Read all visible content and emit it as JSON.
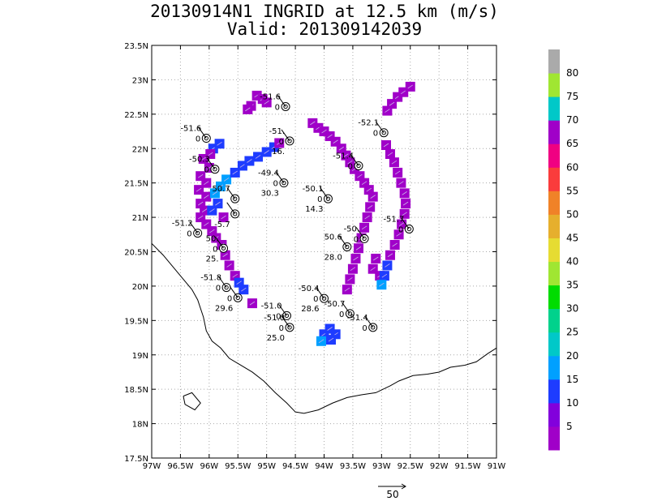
{
  "chart_data": {
    "type": "heatmap",
    "title": "20130914N1 INGRID at 12.5 km (m/s)",
    "subtitle": "Valid: 201309142039",
    "xlim": [
      -97,
      -91
    ],
    "ylim": [
      17.5,
      23.5
    ],
    "x_ticks": [
      "97W",
      "96.5W",
      "96W",
      "95.5W",
      "95W",
      "94.5W",
      "94W",
      "93.5W",
      "93W",
      "92.5W",
      "92W",
      "91.5W",
      "91W"
    ],
    "y_ticks": [
      "17.5N",
      "18N",
      "18.5N",
      "19N",
      "19.5N",
      "20N",
      "20.5N",
      "21N",
      "21.5N",
      "22N",
      "22.5N",
      "23N",
      "23.5N"
    ],
    "grid": true,
    "colorbar": {
      "labels": [
        "5",
        "10",
        "15",
        "20",
        "25",
        "30",
        "35",
        "40",
        "45",
        "50",
        "55",
        "60",
        "65",
        "70",
        "75",
        "80"
      ],
      "colors": [
        "#a000c8",
        "#8200dc",
        "#1e3cff",
        "#00a0ff",
        "#00c8c8",
        "#00d28c",
        "#00dc00",
        "#a0e632",
        "#e6dc32",
        "#e6af2d",
        "#f08228",
        "#fa3c3c",
        "#f00082",
        "#a000c8",
        "#00c8c8",
        "#a0e632",
        "#aaaaaa"
      ]
    },
    "reference_vector": "50",
    "drops": [
      {
        "lon": -94.67,
        "lat": 22.61,
        "label_top": "-51.6",
        "label_left": "0"
      },
      {
        "lon": -96.05,
        "lat": 22.15,
        "label_top": "-51.6",
        "label_left": "0"
      },
      {
        "lon": -94.6,
        "lat": 22.11,
        "label_top": "-51.",
        "label_left": "0",
        "label_bottom": "16."
      },
      {
        "lon": -92.96,
        "lat": 22.23,
        "label_top": "-52.1",
        "label_left": "0"
      },
      {
        "lon": -93.4,
        "lat": 21.75,
        "label_top": "-51.4",
        "label_left": "0"
      },
      {
        "lon": -95.9,
        "lat": 21.7,
        "label_top": "-50.3",
        "label_left": "0"
      },
      {
        "lon": -94.7,
        "lat": 21.5,
        "label_top": "-49.4",
        "label_left": "0",
        "label_bottom": "30.3"
      },
      {
        "lon": -93.93,
        "lat": 21.27,
        "label_top": "-50.1",
        "label_left": "0",
        "label_bottom": "14.3"
      },
      {
        "lon": -95.55,
        "lat": 21.27,
        "label_top": "50.7",
        "label_left": "",
        "label_bottom": ""
      },
      {
        "lon": -95.55,
        "lat": 21.05,
        "label_top": "",
        "label_left": "",
        "label_bottom": "-5.7"
      },
      {
        "lon": -96.2,
        "lat": 20.77,
        "label_top": "-51.2",
        "label_left": "0"
      },
      {
        "lon": -92.52,
        "lat": 20.83,
        "label_top": "-51.7",
        "label_left": "0"
      },
      {
        "lon": -93.3,
        "lat": 20.69,
        "label_top": "-50.",
        "label_left": "0"
      },
      {
        "lon": -93.6,
        "lat": 20.57,
        "label_top": "50.6",
        "label_left": "",
        "label_bottom": "28.0"
      },
      {
        "lon": -95.75,
        "lat": 20.55,
        "label_top": "50.",
        "label_left": "0",
        "label_bottom": "25."
      },
      {
        "lon": -95.7,
        "lat": 19.98,
        "label_top": "-51.8",
        "label_left": "0"
      },
      {
        "lon": -95.5,
        "lat": 19.83,
        "label_top": "",
        "label_left": "0",
        "label_bottom": "29.6"
      },
      {
        "lon": -94.0,
        "lat": 19.82,
        "label_top": "-50.4",
        "label_left": "0",
        "label_bottom": "28.6"
      },
      {
        "lon": -93.55,
        "lat": 19.6,
        "label_top": "-50.7",
        "label_left": "0"
      },
      {
        "lon": -94.65,
        "lat": 19.57,
        "label_top": "-51.0",
        "label_left": "0"
      },
      {
        "lon": -94.6,
        "lat": 19.4,
        "label_top": "-51.0",
        "label_left": "0",
        "label_bottom": "25.0"
      },
      {
        "lon": -93.15,
        "lat": 19.4,
        "label_top": "-51.4",
        "label_left": "0"
      }
    ],
    "wind_cells": [
      {
        "lon": -95.17,
        "lat": 22.77,
        "v": 3
      },
      {
        "lon": -95.07,
        "lat": 22.72,
        "v": 3
      },
      {
        "lon": -95.0,
        "lat": 22.67,
        "v": 3
      },
      {
        "lon": -95.27,
        "lat": 22.62,
        "v": 3
      },
      {
        "lon": -95.33,
        "lat": 22.57,
        "v": 3
      },
      {
        "lon": -95.93,
        "lat": 22.0,
        "v": 12
      },
      {
        "lon": -95.82,
        "lat": 22.07,
        "v": 12
      },
      {
        "lon": -95.98,
        "lat": 21.92,
        "v": 4
      },
      {
        "lon": -96.1,
        "lat": 21.85,
        "v": 4
      },
      {
        "lon": -96.0,
        "lat": 21.72,
        "v": 4
      },
      {
        "lon": -96.15,
        "lat": 21.6,
        "v": 4
      },
      {
        "lon": -96.05,
        "lat": 21.5,
        "v": 4
      },
      {
        "lon": -96.18,
        "lat": 21.4,
        "v": 4
      },
      {
        "lon": -96.05,
        "lat": 21.3,
        "v": 4
      },
      {
        "lon": -96.15,
        "lat": 21.2,
        "v": 4
      },
      {
        "lon": -96.08,
        "lat": 21.1,
        "v": 4
      },
      {
        "lon": -96.15,
        "lat": 21.0,
        "v": 4
      },
      {
        "lon": -96.05,
        "lat": 20.9,
        "v": 4
      },
      {
        "lon": -95.95,
        "lat": 20.8,
        "v": 4
      },
      {
        "lon": -95.88,
        "lat": 20.7,
        "v": 4
      },
      {
        "lon": -95.78,
        "lat": 20.6,
        "v": 4
      },
      {
        "lon": -95.72,
        "lat": 20.45,
        "v": 4
      },
      {
        "lon": -95.65,
        "lat": 20.3,
        "v": 4
      },
      {
        "lon": -95.55,
        "lat": 20.15,
        "v": 4
      },
      {
        "lon": -95.48,
        "lat": 20.05,
        "v": 12
      },
      {
        "lon": -95.4,
        "lat": 19.95,
        "v": 12
      },
      {
        "lon": -95.9,
        "lat": 21.35,
        "v": 15
      },
      {
        "lon": -95.8,
        "lat": 21.45,
        "v": 15
      },
      {
        "lon": -95.7,
        "lat": 21.55,
        "v": 15
      },
      {
        "lon": -95.85,
        "lat": 21.2,
        "v": 12
      },
      {
        "lon": -95.95,
        "lat": 21.1,
        "v": 12
      },
      {
        "lon": -95.75,
        "lat": 21.0,
        "v": 4
      },
      {
        "lon": -95.55,
        "lat": 21.65,
        "v": 12
      },
      {
        "lon": -95.42,
        "lat": 21.75,
        "v": 12
      },
      {
        "lon": -95.3,
        "lat": 21.82,
        "v": 12
      },
      {
        "lon": -95.15,
        "lat": 21.88,
        "v": 12
      },
      {
        "lon": -95.0,
        "lat": 21.95,
        "v": 12
      },
      {
        "lon": -94.87,
        "lat": 22.02,
        "v": 12
      },
      {
        "lon": -94.78,
        "lat": 22.08,
        "v": 4
      },
      {
        "lon": -95.25,
        "lat": 19.75,
        "v": 4
      },
      {
        "lon": -94.0,
        "lat": 19.3,
        "v": 12
      },
      {
        "lon": -93.9,
        "lat": 19.38,
        "v": 12
      },
      {
        "lon": -93.8,
        "lat": 19.3,
        "v": 12
      },
      {
        "lon": -94.05,
        "lat": 19.2,
        "v": 15
      },
      {
        "lon": -93.88,
        "lat": 19.22,
        "v": 12
      },
      {
        "lon": -94.2,
        "lat": 22.37,
        "v": 4
      },
      {
        "lon": -94.1,
        "lat": 22.3,
        "v": 4
      },
      {
        "lon": -94.0,
        "lat": 22.25,
        "v": 4
      },
      {
        "lon": -93.9,
        "lat": 22.18,
        "v": 4
      },
      {
        "lon": -93.8,
        "lat": 22.1,
        "v": 4
      },
      {
        "lon": -93.7,
        "lat": 22.0,
        "v": 4
      },
      {
        "lon": -93.62,
        "lat": 21.9,
        "v": 4
      },
      {
        "lon": -93.55,
        "lat": 21.8,
        "v": 4
      },
      {
        "lon": -93.47,
        "lat": 21.7,
        "v": 4
      },
      {
        "lon": -93.38,
        "lat": 21.6,
        "v": 4
      },
      {
        "lon": -93.3,
        "lat": 21.5,
        "v": 4
      },
      {
        "lon": -93.22,
        "lat": 21.4,
        "v": 4
      },
      {
        "lon": -93.15,
        "lat": 21.3,
        "v": 4
      },
      {
        "lon": -93.2,
        "lat": 21.15,
        "v": 4
      },
      {
        "lon": -93.25,
        "lat": 21.0,
        "v": 4
      },
      {
        "lon": -93.3,
        "lat": 20.85,
        "v": 4
      },
      {
        "lon": -93.35,
        "lat": 20.7,
        "v": 4
      },
      {
        "lon": -93.4,
        "lat": 20.55,
        "v": 4
      },
      {
        "lon": -93.45,
        "lat": 20.4,
        "v": 4
      },
      {
        "lon": -93.5,
        "lat": 20.25,
        "v": 4
      },
      {
        "lon": -93.55,
        "lat": 20.1,
        "v": 4
      },
      {
        "lon": -93.6,
        "lat": 19.95,
        "v": 4
      },
      {
        "lon": -93.1,
        "lat": 20.4,
        "v": 4
      },
      {
        "lon": -93.15,
        "lat": 20.25,
        "v": 4
      },
      {
        "lon": -93.03,
        "lat": 20.15,
        "v": 4
      },
      {
        "lon": -92.72,
        "lat": 22.75,
        "v": 4
      },
      {
        "lon": -92.62,
        "lat": 22.82,
        "v": 4
      },
      {
        "lon": -92.5,
        "lat": 22.9,
        "v": 4
      },
      {
        "lon": -92.82,
        "lat": 22.65,
        "v": 4
      },
      {
        "lon": -92.9,
        "lat": 22.55,
        "v": 4
      },
      {
        "lon": -92.92,
        "lat": 22.05,
        "v": 4
      },
      {
        "lon": -92.85,
        "lat": 21.92,
        "v": 4
      },
      {
        "lon": -92.78,
        "lat": 21.8,
        "v": 4
      },
      {
        "lon": -92.72,
        "lat": 21.65,
        "v": 4
      },
      {
        "lon": -92.66,
        "lat": 21.5,
        "v": 4
      },
      {
        "lon": -92.6,
        "lat": 21.35,
        "v": 4
      },
      {
        "lon": -92.58,
        "lat": 21.2,
        "v": 4
      },
      {
        "lon": -92.6,
        "lat": 21.05,
        "v": 4
      },
      {
        "lon": -92.65,
        "lat": 20.9,
        "v": 4
      },
      {
        "lon": -92.7,
        "lat": 20.75,
        "v": 4
      },
      {
        "lon": -92.77,
        "lat": 20.6,
        "v": 4
      },
      {
        "lon": -92.85,
        "lat": 20.45,
        "v": 4
      },
      {
        "lon": -92.9,
        "lat": 20.3,
        "v": 12
      },
      {
        "lon": -92.95,
        "lat": 20.15,
        "v": 12
      },
      {
        "lon": -93.0,
        "lat": 20.02,
        "v": 15
      }
    ],
    "coastline": [
      [
        -97.0,
        20.62
      ],
      [
        -96.8,
        20.45
      ],
      [
        -96.65,
        20.3
      ],
      [
        -96.45,
        20.1
      ],
      [
        -96.3,
        19.95
      ],
      [
        -96.2,
        19.8
      ],
      [
        -96.1,
        19.55
      ],
      [
        -96.05,
        19.35
      ],
      [
        -95.95,
        19.2
      ],
      [
        -95.8,
        19.1
      ],
      [
        -95.65,
        18.95
      ],
      [
        -95.45,
        18.85
      ],
      [
        -95.25,
        18.75
      ],
      [
        -95.05,
        18.62
      ],
      [
        -94.85,
        18.45
      ],
      [
        -94.65,
        18.3
      ],
      [
        -94.5,
        18.17
      ],
      [
        -94.35,
        18.15
      ],
      [
        -94.1,
        18.2
      ],
      [
        -93.85,
        18.3
      ],
      [
        -93.6,
        18.38
      ],
      [
        -93.35,
        18.42
      ],
      [
        -93.1,
        18.45
      ],
      [
        -92.85,
        18.55
      ],
      [
        -92.7,
        18.62
      ],
      [
        -92.45,
        18.7
      ],
      [
        -92.2,
        18.72
      ],
      [
        -92.0,
        18.75
      ],
      [
        -91.8,
        18.82
      ],
      [
        -91.55,
        18.85
      ],
      [
        -91.35,
        18.9
      ],
      [
        -91.15,
        19.02
      ],
      [
        -91.0,
        19.1
      ]
    ],
    "island": [
      [
        -96.45,
        18.4
      ],
      [
        -96.3,
        18.45
      ],
      [
        -96.15,
        18.3
      ],
      [
        -96.25,
        18.2
      ],
      [
        -96.42,
        18.28
      ],
      [
        -96.45,
        18.4
      ]
    ]
  }
}
